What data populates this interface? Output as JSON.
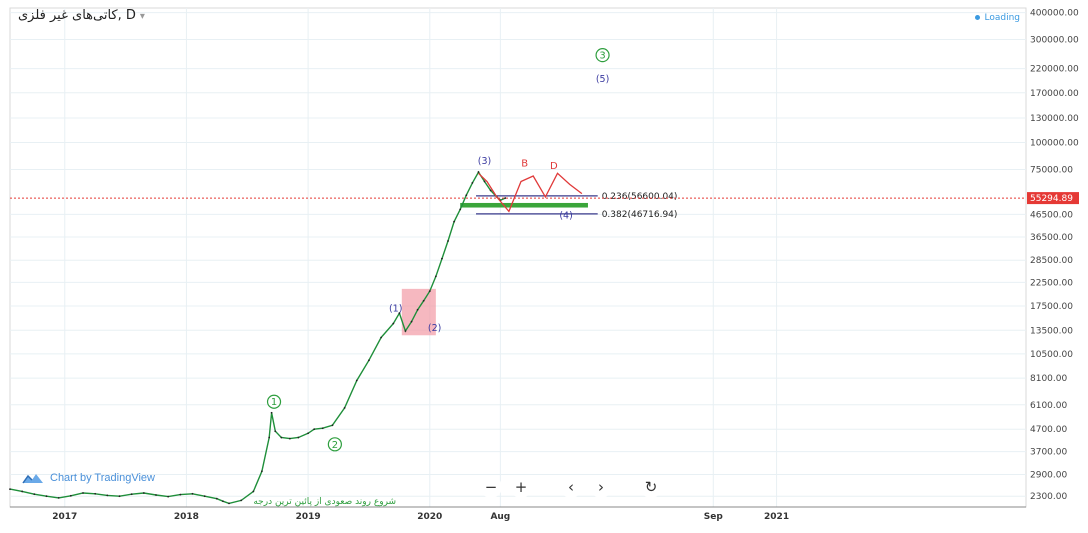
{
  "header": {
    "title": "کاتی‌های غیر فلزی, D",
    "status": "Loading"
  },
  "branding": {
    "text": "Chart by TradingView"
  },
  "toolbar": {
    "buttons": [
      {
        "name": "zoom-out-button",
        "label": "−"
      },
      {
        "name": "zoom-in-button",
        "label": "+"
      },
      {
        "name": "scroll-left-button",
        "label": "‹"
      },
      {
        "name": "scroll-right-button",
        "label": "›"
      },
      {
        "name": "reset-button",
        "label": "↻"
      }
    ]
  },
  "chart_data": {
    "type": "line",
    "scale": "log",
    "grid": true,
    "colors": {
      "price": "#1f8f3a",
      "fib_line": "#3a3a8c",
      "fib_band": "#3aa53a",
      "corrective": "#e03a3a",
      "box": "#f29aa5",
      "current_line": "#e53935",
      "current_label_bg": "#e53935",
      "wave_circle": "#2e9e3e",
      "wave_paren": "#3a3aa0",
      "annotation_text": "#2e9e3e"
    },
    "y_ticks": [
      2300,
      2900,
      3700,
      4700,
      6100,
      8100,
      10500,
      13500,
      17500,
      22500,
      28500,
      36500,
      46500,
      75000,
      100000,
      130000,
      170000,
      220000,
      300000,
      400000
    ],
    "y_tick_labels": [
      "2300.00",
      "2900.00",
      "3700.00",
      "4700.00",
      "6100.00",
      "8100.00",
      "10500.00",
      "13500.00",
      "17500.00",
      "22500.00",
      "28500.00",
      "36500.00",
      "46500.00",
      "75000.00",
      "100000.00",
      "130000.00",
      "170000.00",
      "220000.00",
      "300000.00",
      "400000.00"
    ],
    "ylim": [
      2050,
      420000
    ],
    "x_ticks": [
      {
        "label": "2017",
        "t": 2017.0
      },
      {
        "label": "2018",
        "t": 2018.0
      },
      {
        "label": "2019",
        "t": 2019.0
      },
      {
        "label": "2020",
        "t": 2020.0
      },
      {
        "label": "Aug",
        "t": 2020.58
      },
      {
        "label": "Sep",
        "t": 2022.33
      },
      {
        "label": "2021",
        "t": 2022.85
      }
    ],
    "xlim": [
      2016.55,
      2024.9
    ],
    "current_price": {
      "value": 55294.89,
      "label": "55294.89"
    },
    "series": [
      {
        "x": [
          2016.55,
          2016.65,
          2016.75,
          2016.85,
          2016.95,
          2017.05,
          2017.15,
          2017.25,
          2017.35,
          2017.45,
          2017.55,
          2017.65,
          2017.75,
          2017.85,
          2017.95,
          2018.05,
          2018.15,
          2018.25,
          2018.3,
          2018.35,
          2018.45,
          2018.55,
          2018.62,
          2018.68,
          2018.7,
          2018.73,
          2018.78,
          2018.85,
          2018.92,
          2019.0,
          2019.05,
          2019.12,
          2019.2,
          2019.3,
          2019.4,
          2019.5,
          2019.6,
          2019.7,
          2019.75,
          2019.8,
          2019.85,
          2019.9,
          2019.95,
          2020.0,
          2020.05,
          2020.1,
          2020.15,
          2020.2,
          2020.25,
          2020.3,
          2020.35,
          2020.4,
          2020.45,
          2020.5,
          2020.55,
          2020.58,
          2020.62
        ],
        "values": [
          2480,
          2420,
          2350,
          2300,
          2260,
          2310,
          2380,
          2360,
          2320,
          2300,
          2350,
          2380,
          2330,
          2290,
          2340,
          2360,
          2300,
          2240,
          2180,
          2130,
          2200,
          2420,
          3000,
          4300,
          5600,
          4600,
          4300,
          4250,
          4300,
          4500,
          4700,
          4750,
          4900,
          5900,
          7900,
          9800,
          12500,
          14500,
          16200,
          13400,
          14800,
          16800,
          18500,
          20500,
          24000,
          29000,
          35000,
          43000,
          49000,
          57000,
          65000,
          73000,
          66000,
          60000,
          56000,
          54000,
          55300
        ]
      }
    ],
    "corrective_path": {
      "x": [
        2020.4,
        2020.47,
        2020.55,
        2020.65,
        2020.75,
        2020.85,
        2020.95,
        2021.05,
        2021.15,
        2021.25
      ],
      "values": [
        72000,
        66000,
        56000,
        48000,
        66000,
        70000,
        56000,
        72000,
        64000,
        58000
      ]
    },
    "fib_levels": [
      {
        "level": 0.236,
        "value": 56600.04,
        "label": "0.236(56600.04)"
      },
      {
        "level": 0.382,
        "value": 46716.94,
        "label": "0.382(46716.94)"
      }
    ],
    "fib_band": {
      "top": 52500,
      "bottom": 50000,
      "x_start": 2020.25,
      "x_end": 2021.3
    },
    "fib_x_range": [
      2020.38,
      2021.38
    ],
    "fib_band_dates": [
      2020.25,
      2021.3
    ],
    "box": {
      "x_start": 2019.77,
      "x_end": 2020.05,
      "top": 21000,
      "bottom": 12800
    },
    "annotations": [
      {
        "text": "1",
        "style": "circle",
        "x": 2018.72,
        "y": 6300
      },
      {
        "text": "2",
        "style": "circle",
        "x": 2019.22,
        "y": 4000
      },
      {
        "text": "3",
        "style": "circle",
        "x": 2021.42,
        "y": 254000
      },
      {
        "text": "(5)",
        "style": "paren",
        "x": 2021.42,
        "y": 197000
      },
      {
        "text": "(3)",
        "style": "paren",
        "x": 2020.45,
        "y": 82000
      },
      {
        "text": "(4)",
        "style": "paren",
        "x": 2021.12,
        "y": 46000
      },
      {
        "text": "(1)",
        "style": "paren",
        "x": 2019.72,
        "y": 17000
      },
      {
        "text": "(2)",
        "style": "paren",
        "x": 2020.04,
        "y": 13800
      },
      {
        "text": "B",
        "style": "red",
        "x": 2020.78,
        "y": 80000
      },
      {
        "text": "D",
        "style": "red",
        "x": 2021.02,
        "y": 78000
      },
      {
        "text": "شروع روند صعودی از پائین ترین درجه",
        "style": "note",
        "x": 2018.55,
        "y": 2120
      }
    ]
  }
}
